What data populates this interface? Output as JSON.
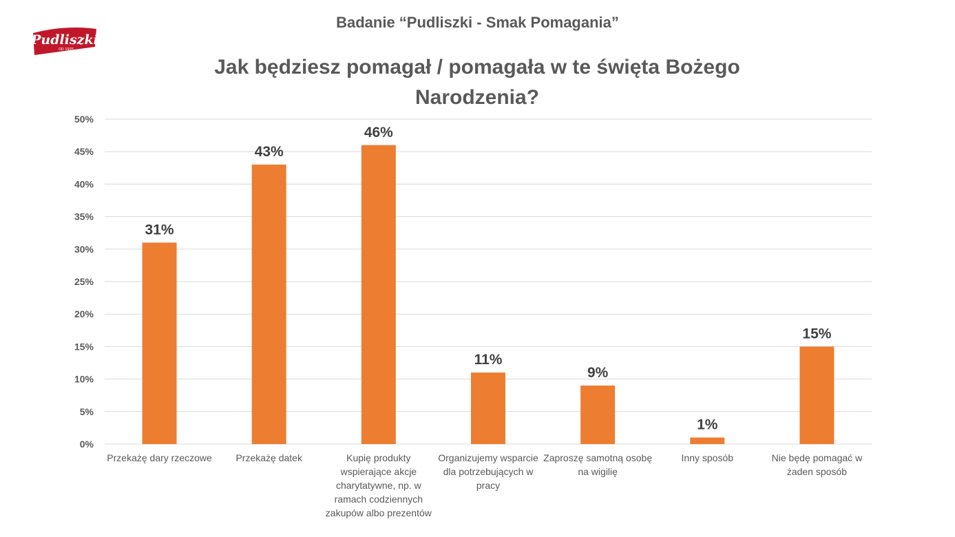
{
  "header": {
    "study_title": "Badanie “Pudliszki - Smak Pomagania”",
    "logo_text": "Pudliszki",
    "logo_subtext": "OD 1935"
  },
  "colors": {
    "bar": "#ED7D31",
    "grid": "#D9D9D9",
    "text": "#595959",
    "logo_red": "#C0182A"
  },
  "chart_data": {
    "type": "bar",
    "title": "Jak będziesz pomagał / pomagała w te święta Bożego Narodzenia?",
    "categories": [
      "Przekażę dary rzeczowe",
      "Przekażę datek",
      "Kupię produkty wspierające akcje charytatywne, np. w ramach codziennych zakupów albo prezentów",
      "Organizujemy wsparcie dla potrzebujących w pracy",
      "Zaproszę samotną osobę na wigilię",
      "Inny sposób",
      "Nie będę pomagać w żaden sposób"
    ],
    "values": [
      31,
      43,
      46,
      11,
      9,
      1,
      15
    ],
    "data_labels": [
      "31%",
      "43%",
      "46%",
      "11%",
      "9%",
      "1%",
      "15%"
    ],
    "ylim": [
      0,
      50
    ],
    "y_ticks": [
      "0%",
      "5%",
      "10%",
      "15%",
      "20%",
      "25%",
      "30%",
      "35%",
      "40%",
      "45%",
      "50%"
    ],
    "grid": true,
    "legend": "none",
    "xlabel": "",
    "ylabel": ""
  }
}
